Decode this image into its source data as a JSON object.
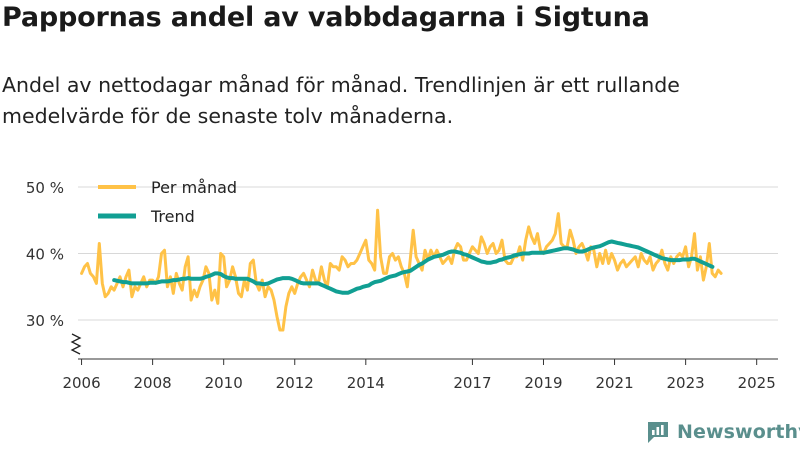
{
  "title": "Pappornas andel av vabbdagarna i Sigtuna",
  "subtitle": "Andel av nettodagar månad för månad. Trendlinjen är ett rullande medelvärde för de senaste tolv månaderna.",
  "brand": {
    "name": "Newsworthy",
    "icon": "newsworthy-logo-icon",
    "color": "#5a8f8d"
  },
  "colors": {
    "monthly": "#ffc247",
    "trend": "#119f93",
    "grid": "#d8d8d8",
    "axis": "#333333"
  },
  "chart_data": {
    "type": "line",
    "title": "Pappornas andel av vabbdagarna i Sigtuna",
    "ylabel": "",
    "xlabel": "",
    "ylim": [
      25,
      50
    ],
    "yticks": [
      30,
      40,
      50
    ],
    "ytick_labels": [
      "30 %",
      "40 %",
      "50 %"
    ],
    "xlim": [
      2005.9,
      2025.6
    ],
    "xticks": [
      2006,
      2008,
      2010,
      2012,
      2014,
      2017,
      2019,
      2021,
      2023,
      2025
    ],
    "xtick_labels": [
      "2006",
      "2008",
      "2010",
      "2012",
      "2014",
      "2017",
      "2019",
      "2021",
      "2023",
      "2025"
    ],
    "broken_axis": true,
    "legend": {
      "position": "top-left",
      "entries": [
        "Per månad",
        "Trend"
      ]
    },
    "series": [
      {
        "name": "Per månad",
        "start": 2006.0,
        "step": 0.08333,
        "values": [
          37,
          38,
          38.5,
          37,
          36.5,
          35.5,
          41.5,
          35.5,
          33.5,
          34,
          35,
          34.5,
          35.5,
          36.5,
          35,
          36.5,
          37.5,
          33.5,
          35,
          34.5,
          35.5,
          36.5,
          35,
          36,
          36,
          35.5,
          36.5,
          40,
          40.5,
          35,
          36.5,
          34,
          37,
          35.5,
          34.5,
          38,
          39.5,
          33,
          34.5,
          33.5,
          35,
          36,
          38,
          37,
          33,
          34.5,
          32.5,
          40,
          39.5,
          35,
          36,
          38,
          36.5,
          34,
          33.5,
          36,
          34.5,
          38.5,
          39,
          35.5,
          34.5,
          36,
          33.5,
          35,
          34.5,
          33,
          30.5,
          28.5,
          28.5,
          32,
          34,
          35,
          34,
          35.5,
          36.5,
          37,
          36,
          35,
          37.5,
          36,
          35.5,
          38,
          36,
          35,
          38.5,
          38,
          38,
          37.5,
          39.5,
          39,
          38,
          38.5,
          38.5,
          39,
          40,
          41,
          42,
          39,
          38.5,
          37.5,
          46.5,
          39.5,
          37,
          37,
          39.5,
          40,
          39,
          39.5,
          38,
          37,
          35,
          39,
          43.5,
          39.5,
          38.5,
          37.5,
          40.5,
          39,
          40.5,
          39.5,
          40.5,
          39.5,
          38.5,
          39,
          39.5,
          38.5,
          40.5,
          41.5,
          41,
          39,
          39,
          40,
          41,
          40.5,
          40,
          42.5,
          41.5,
          40,
          41,
          41.5,
          40,
          40.5,
          42,
          39,
          38.5,
          38.5,
          39.5,
          39.5,
          41,
          39,
          42,
          44,
          42.5,
          41.5,
          43,
          40.5,
          40,
          41,
          41.5,
          42,
          43,
          46,
          41.5,
          41,
          41,
          43.5,
          42,
          40,
          41,
          41.5,
          40.5,
          39,
          41,
          40.5,
          38,
          40,
          38.5,
          40.5,
          38.5,
          40,
          39,
          37.5,
          38.5,
          39,
          38,
          38.5,
          39,
          39.5,
          38,
          40,
          39,
          38.5,
          39.5,
          37.5,
          38.5,
          39,
          40.5,
          38.5,
          37.5,
          39.5,
          38.5,
          39.5,
          40,
          39.5,
          41,
          38,
          39.5,
          43,
          37.5,
          39.5,
          36,
          38,
          41.5,
          37,
          36.5,
          37.5,
          37
        ]
      },
      {
        "name": "Trend",
        "start": 2006.92,
        "step": 0.08333,
        "values": [
          36,
          35.9,
          35.8,
          35.7,
          35.7,
          35.6,
          35.5,
          35.5,
          35.5,
          35.5,
          35.5,
          35.5,
          35.6,
          35.6,
          35.6,
          35.7,
          35.8,
          35.8,
          35.8,
          35.9,
          36,
          36,
          36.1,
          36.2,
          36.2,
          36.3,
          36.2,
          36.2,
          36.2,
          36.2,
          36.3,
          36.5,
          36.6,
          36.8,
          37,
          37,
          36.9,
          36.6,
          36.4,
          36.3,
          36.3,
          36.2,
          36.2,
          36.2,
          36.2,
          36.2,
          36,
          35.8,
          35.5,
          35.5,
          35.4,
          35.4,
          35.5,
          35.7,
          35.9,
          36.1,
          36.2,
          36.3,
          36.3,
          36.3,
          36.2,
          36,
          35.8,
          35.6,
          35.5,
          35.5,
          35.5,
          35.5,
          35.5,
          35.5,
          35.3,
          35.1,
          34.9,
          34.7,
          34.5,
          34.3,
          34.2,
          34.1,
          34.1,
          34.1,
          34.3,
          34.5,
          34.7,
          34.8,
          35,
          35.1,
          35.2,
          35.5,
          35.7,
          35.8,
          35.9,
          36.1,
          36.3,
          36.5,
          36.6,
          36.7,
          36.9,
          37.1,
          37.2,
          37.3,
          37.4,
          37.7,
          38,
          38.3,
          38.5,
          38.8,
          39.1,
          39.3,
          39.5,
          39.6,
          39.7,
          39.8,
          40,
          40.2,
          40.3,
          40.3,
          40.2,
          40.1,
          39.9,
          39.8,
          39.6,
          39.4,
          39.2,
          39,
          38.8,
          38.7,
          38.6,
          38.6,
          38.7,
          38.8,
          39,
          39.1,
          39.3,
          39.4,
          39.5,
          39.7,
          39.8,
          39.9,
          40,
          40,
          40,
          40.1,
          40.1,
          40.1,
          40.1,
          40.1,
          40.2,
          40.3,
          40.4,
          40.5,
          40.6,
          40.7,
          40.8,
          40.8,
          40.7,
          40.6,
          40.4,
          40.3,
          40.3,
          40.4,
          40.6,
          40.8,
          40.9,
          41,
          41.1,
          41.3,
          41.5,
          41.7,
          41.8,
          41.7,
          41.6,
          41.5,
          41.4,
          41.3,
          41.2,
          41.1,
          41,
          40.9,
          40.7,
          40.5,
          40.3,
          40.1,
          39.9,
          39.7,
          39.5,
          39.3,
          39.2,
          39.1,
          39,
          39,
          39,
          39,
          39.1,
          39.1,
          39.1,
          39.2,
          39.2,
          39,
          38.8,
          38.6,
          38.4,
          38.2,
          38
        ]
      }
    ]
  }
}
